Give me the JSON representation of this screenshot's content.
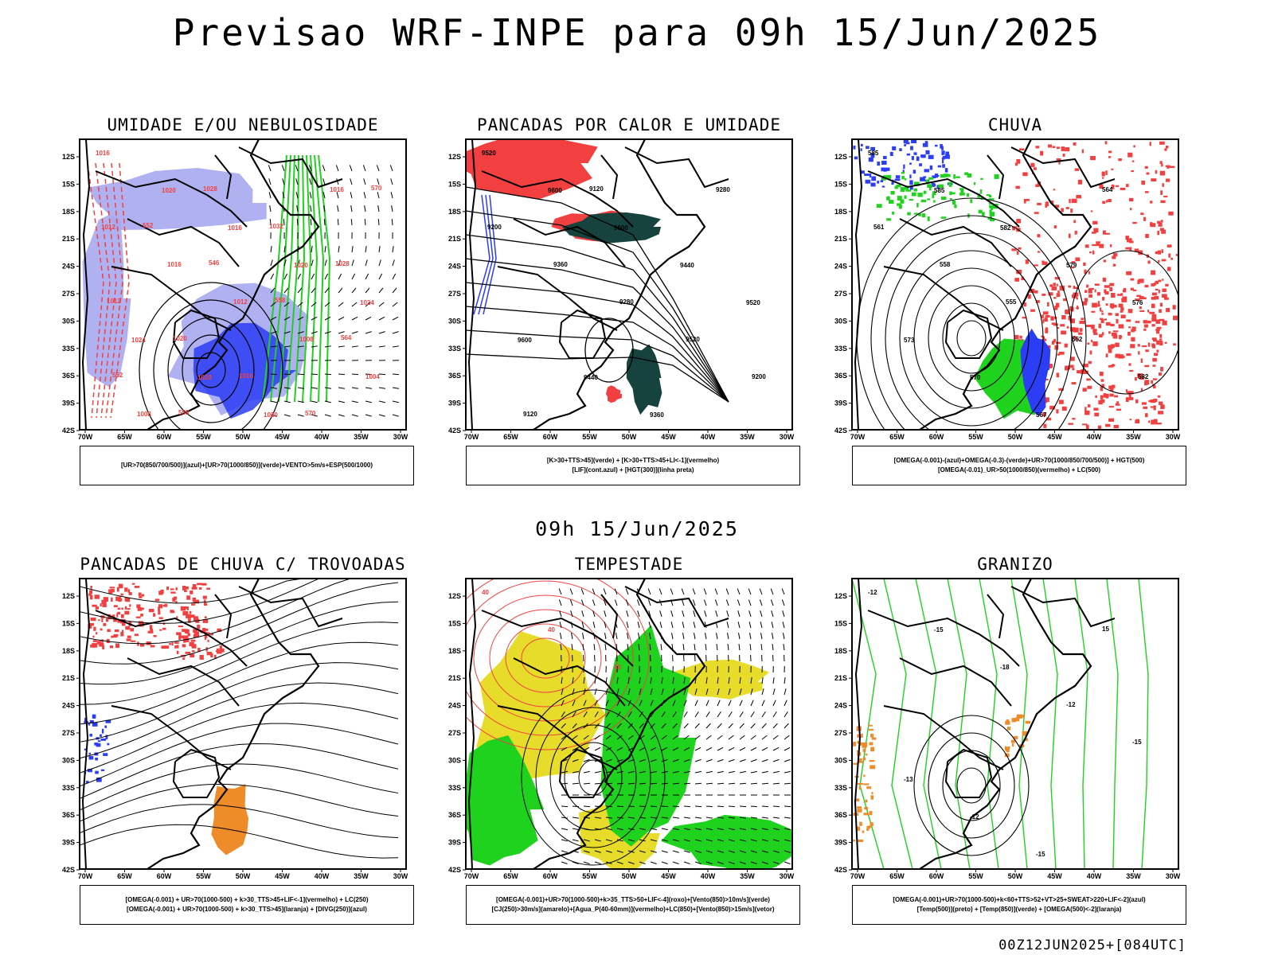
{
  "main_title": "Previsao WRF-INPE  para 09h 15/Jun/2025",
  "mid_title": "09h 15/Jun/2025",
  "footer": "00Z12JUN2025+[084UTC]",
  "axes": {
    "x_ticks": [
      "70W",
      "65W",
      "60W",
      "55W",
      "50W",
      "45W",
      "40W",
      "35W",
      "30W"
    ],
    "y_ticks": [
      "12S",
      "15S",
      "18S",
      "21S",
      "24S",
      "27S",
      "30S",
      "33S",
      "36S",
      "39S",
      "42S"
    ]
  },
  "panels": [
    {
      "title": "UMIDADE E/OU NEBULOSIDADE",
      "legend": [
        "[UR>70(850/700/500)](azul)+[UR>70(1000/850)](verde)+VENTO>5m/s+ESP(500/1000)"
      ],
      "labels": [
        "1016",
        "1020",
        "1016",
        "1020",
        "1024",
        "1024",
        "1028",
        "1020",
        "1016",
        "1012",
        "1016",
        "1012",
        "1008",
        "1004",
        "1008",
        "1028",
        "1032",
        "1028",
        "1012",
        "1020",
        "1016",
        "570",
        "570",
        "552",
        "546",
        "558",
        "564",
        "552",
        "558"
      ]
    },
    {
      "title": "PANCADAS POR CALOR E UMIDADE",
      "legend": [
        "[K>30+TTS>45](verde) + [K>30+TTS>45+LI<-1](vermelho)",
        "[LIF](cont.azul) + [HGT(300)](linha preta)"
      ],
      "labels": [
        "9520",
        "9600",
        "9600",
        "9440",
        "9520",
        "9600",
        "9440",
        "9360",
        "9280",
        "9200",
        "9360",
        "9280",
        "9520",
        "9200",
        "9120",
        "9120"
      ]
    },
    {
      "title": "CHUVA",
      "legend": [
        "[OMEGA(-0.001)-(azul)+OMEGA(-0.3)-(verde)+UR>70(1000/850/700/500)] + HGT(500)",
        "[OMEGA(-0.01)_UR>50(1000/850)(vermelho) + LC(500)"
      ],
      "labels": [
        "585",
        "585",
        "582",
        "579",
        "576",
        "573",
        "570",
        "567",
        "564",
        "561",
        "558",
        "555",
        "552",
        "582"
      ]
    },
    {
      "title": "PANCADAS DE CHUVA C/ TROVOADAS",
      "legend": [
        "[OMEGA(-0.001) + UR>70(1000-500) + k>30_TTS>45+LIF<-1](vermelho) + LC(250)",
        "[OMEGA(-0.001) + UR>70(1000-500) + k>30_TTS>45](laranja) + [DIVG(250)](azul)"
      ],
      "labels": []
    },
    {
      "title": "TEMPESTADE",
      "legend": [
        "[OMEGA(-0.001)+UR>70(1000-500)+k>35_TTS>50+LIF<-4](roxo)+[Vento(850)>10m/s](verde)",
        "[CJ(250)>30m/s](amarelo)+[Agua_P(40-60mm)](vermelho)+LC(850)+[Vento(850)>15m/s](vetor)"
      ],
      "labels": [
        "40",
        "40",
        "40"
      ]
    },
    {
      "title": "GRANIZO",
      "legend": [
        "[OMEGA(-0.001)+UR>70(1000-500)+k<60+TTS>52+VT>25+SWEAT>220+LIF<-2](azul)",
        "[Temp(500)](preto) + [Temp(850)](verde) + [OMEGA(500)<-2](laranja)"
      ],
      "labels": [
        "-12",
        "-15",
        "-18",
        "-12",
        "-15",
        "-13",
        "-12",
        "-15",
        "15"
      ]
    }
  ],
  "colors": {
    "blue_fill": "#2b3df5",
    "light_blue_fill": "#a7a9f0",
    "green": "#1ed21e",
    "red": "#f24040",
    "dark_teal": "#17433f",
    "yellow": "#e8dc2a",
    "orange": "#ee8c2a",
    "purple": "#9a2ad2"
  }
}
